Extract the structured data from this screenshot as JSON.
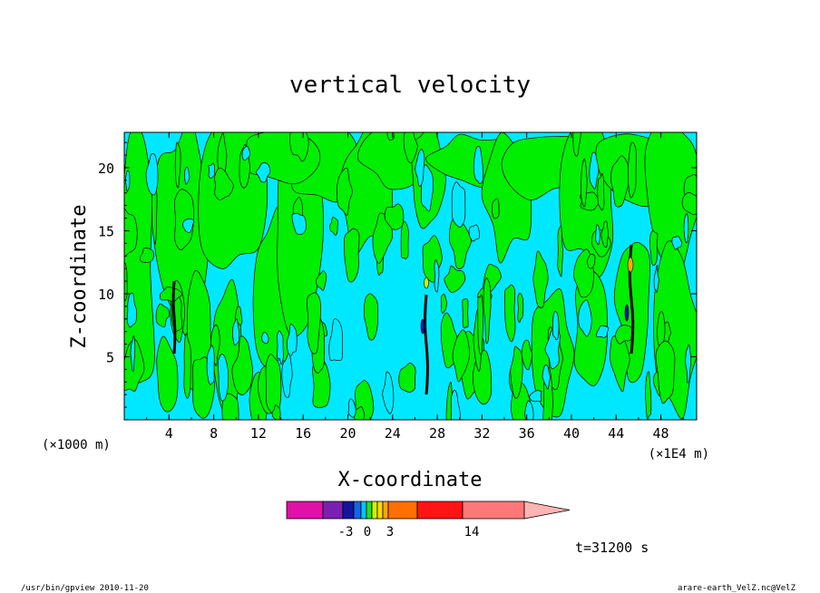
{
  "chart_data": {
    "type": "heatmap",
    "title": "vertical velocity",
    "xlabel": "X-coordinate",
    "ylabel": "Z-coordinate",
    "x_unit_left": "(×1000 m)",
    "x_unit_right": "(×1E4 m)",
    "x_ticks": [
      "4",
      "8",
      "12",
      "16",
      "20",
      "24",
      "28",
      "32",
      "36",
      "40",
      "44",
      "48"
    ],
    "y_ticks": [
      "5",
      "10",
      "15",
      "20"
    ],
    "xlim": [
      0,
      51.2
    ],
    "ylim": [
      0,
      22.8
    ],
    "colorbar": {
      "tick_labels": [
        "-3",
        "0",
        "3",
        "14"
      ],
      "colors": [
        "#e010a8",
        "#7a20b0",
        "#1414a0",
        "#1466e8",
        "#00c8ff",
        "#20e020",
        "#d0f000",
        "#ffd800",
        "#ffa800",
        "#ff7000",
        "#ff1414",
        "#ff7878",
        "#ffb4b4"
      ]
    },
    "background_colors": {
      "negative": "#00e8ff",
      "positive": "#00ee00"
    },
    "time_label": "t=31200 s",
    "footer_left": "/usr/bin/gpview   2010-11-20",
    "footer_right": "arare-earth_VelZ.nc@VelZ"
  }
}
